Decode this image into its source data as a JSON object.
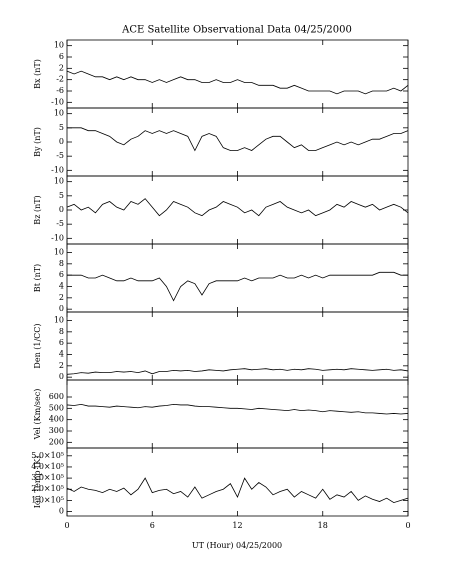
{
  "title": "ACE Satellite Observational Data   04/25/2000",
  "x_label": "UT (Hour)  04/25/2000",
  "chart_data": [
    {
      "type": "line",
      "y_label": "Bx (nT)",
      "ylim": [
        -12,
        12
      ],
      "yticks": [
        -10,
        -6,
        -2,
        2,
        6,
        10
      ],
      "color": "#000000",
      "x": [
        0,
        0.5,
        1,
        1.5,
        2,
        2.5,
        3,
        3.5,
        4,
        4.5,
        5,
        5.5,
        6,
        6.5,
        7,
        7.5,
        8,
        8.5,
        9,
        9.5,
        10,
        10.5,
        11,
        11.5,
        12,
        12.5,
        13,
        13.5,
        14,
        14.5,
        15,
        15.5,
        16,
        16.5,
        17,
        17.5,
        18,
        18.5,
        19,
        19.5,
        20,
        20.5,
        21,
        21.5,
        22,
        22.5,
        23,
        23.5,
        24
      ],
      "values": [
        1,
        0,
        1,
        0,
        -1,
        -1,
        -2,
        -1,
        -2,
        -1,
        -2,
        -2,
        -3,
        -2,
        -3,
        -2,
        -1,
        -2,
        -2,
        -3,
        -3,
        -2,
        -3,
        -3,
        -2,
        -3,
        -3,
        -4,
        -4,
        -4,
        -5,
        -5,
        -4,
        -5,
        -6,
        -6,
        -6,
        -6,
        -7,
        -6,
        -6,
        -6,
        -7,
        -6,
        -6,
        -6,
        -5,
        -6,
        -4
      ]
    },
    {
      "type": "line",
      "y_label": "By (nT)",
      "ylim": [
        -12,
        12
      ],
      "yticks": [
        -10,
        -5,
        0,
        5,
        10
      ],
      "color": "#000000",
      "x": [
        0,
        0.5,
        1,
        1.5,
        2,
        2.5,
        3,
        3.5,
        4,
        4.5,
        5,
        5.5,
        6,
        6.5,
        7,
        7.5,
        8,
        8.5,
        9,
        9.5,
        10,
        10.5,
        11,
        11.5,
        12,
        12.5,
        13,
        13.5,
        14,
        14.5,
        15,
        15.5,
        16,
        16.5,
        17,
        17.5,
        18,
        18.5,
        19,
        19.5,
        20,
        20.5,
        21,
        21.5,
        22,
        22.5,
        23,
        23.5,
        24
      ],
      "values": [
        5,
        5,
        5,
        4,
        4,
        3,
        2,
        0,
        -1,
        1,
        2,
        4,
        3,
        4,
        3,
        4,
        3,
        2,
        -3,
        2,
        3,
        2,
        -2,
        -3,
        -3,
        -2,
        -3,
        -1,
        1,
        2,
        2,
        0,
        -2,
        -1,
        -3,
        -3,
        -2,
        -1,
        0,
        -1,
        0,
        -1,
        0,
        1,
        1,
        2,
        3,
        3,
        4
      ]
    },
    {
      "type": "line",
      "y_label": "Bz (nT)",
      "ylim": [
        -12,
        12
      ],
      "yticks": [
        -10,
        -5,
        0,
        5,
        10
      ],
      "color": "#000000",
      "x": [
        0,
        0.5,
        1,
        1.5,
        2,
        2.5,
        3,
        3.5,
        4,
        4.5,
        5,
        5.5,
        6,
        6.5,
        7,
        7.5,
        8,
        8.5,
        9,
        9.5,
        10,
        10.5,
        11,
        11.5,
        12,
        12.5,
        13,
        13.5,
        14,
        14.5,
        15,
        15.5,
        16,
        16.5,
        17,
        17.5,
        18,
        18.5,
        19,
        19.5,
        20,
        20.5,
        21,
        21.5,
        22,
        22.5,
        23,
        23.5,
        24
      ],
      "values": [
        1,
        2,
        0,
        1,
        -1,
        2,
        3,
        1,
        0,
        3,
        2,
        4,
        1,
        -2,
        0,
        3,
        2,
        1,
        -1,
        -2,
        0,
        1,
        3,
        2,
        1,
        -1,
        0,
        -2,
        1,
        2,
        3,
        1,
        0,
        -1,
        0,
        -2,
        -1,
        0,
        2,
        1,
        3,
        2,
        1,
        2,
        0,
        1,
        2,
        1,
        -1
      ]
    },
    {
      "type": "line",
      "y_label": "Bt (nT)",
      "ylim": [
        -0.5,
        11.5
      ],
      "yticks": [
        0,
        2,
        4,
        6,
        8,
        10
      ],
      "color": "#000000",
      "x": [
        0,
        0.5,
        1,
        1.5,
        2,
        2.5,
        3,
        3.5,
        4,
        4.5,
        5,
        5.5,
        6,
        6.5,
        7,
        7.5,
        8,
        8.5,
        9,
        9.5,
        10,
        10.5,
        11,
        11.5,
        12,
        12.5,
        13,
        13.5,
        14,
        14.5,
        15,
        15.5,
        16,
        16.5,
        17,
        17.5,
        18,
        18.5,
        19,
        19.5,
        20,
        20.5,
        21,
        21.5,
        22,
        22.5,
        23,
        23.5,
        24
      ],
      "values": [
        6,
        6,
        6,
        5.5,
        5.5,
        6,
        5.5,
        5,
        5,
        5.5,
        5,
        5,
        5,
        5.5,
        4,
        1.5,
        4,
        5,
        4.5,
        2.5,
        4.5,
        5,
        5,
        5,
        5,
        5.5,
        5,
        5.5,
        5.5,
        5.5,
        6,
        5.5,
        5.5,
        6,
        5.5,
        6,
        5.5,
        6,
        6,
        6,
        6,
        6,
        6,
        6,
        6.5,
        6.5,
        6.5,
        6,
        6
      ]
    },
    {
      "type": "line",
      "y_label": "Den (1/CC)",
      "ylim": [
        -0.5,
        11.5
      ],
      "yticks": [
        0,
        2,
        4,
        6,
        8,
        10
      ],
      "color": "#000000",
      "x": [
        0,
        0.5,
        1,
        1.5,
        2,
        2.5,
        3,
        3.5,
        4,
        4.5,
        5,
        5.5,
        6,
        6.5,
        7,
        7.5,
        8,
        8.5,
        9,
        9.5,
        10,
        10.5,
        11,
        11.5,
        12,
        12.5,
        13,
        13.5,
        14,
        14.5,
        15,
        15.5,
        16,
        16.5,
        17,
        17.5,
        18,
        18.5,
        19,
        19.5,
        20,
        20.5,
        21,
        21.5,
        22,
        22.5,
        23,
        23.5,
        24
      ],
      "values": [
        0.5,
        0.6,
        0.8,
        0.7,
        0.9,
        0.8,
        0.8,
        1,
        0.9,
        1,
        0.8,
        1.1,
        0.6,
        1,
        1,
        1.2,
        1.1,
        1.2,
        1,
        1.1,
        1.3,
        1.2,
        1.1,
        1.3,
        1.4,
        1.5,
        1.3,
        1.4,
        1.5,
        1.3,
        1.4,
        1.2,
        1.4,
        1.3,
        1.5,
        1.4,
        1.2,
        1.3,
        1.4,
        1.3,
        1.5,
        1.4,
        1.3,
        1.2,
        1.3,
        1.4,
        1.2,
        1.3,
        1.1
      ]
    },
    {
      "type": "line",
      "y_label": "Vel (Km/sec)",
      "ylim": [
        150,
        750
      ],
      "yticks": [
        200,
        300,
        400,
        500,
        600
      ],
      "color": "#000000",
      "x": [
        0,
        0.5,
        1,
        1.5,
        2,
        2.5,
        3,
        3.5,
        4,
        4.5,
        5,
        5.5,
        6,
        6.5,
        7,
        7.5,
        8,
        8.5,
        9,
        9.5,
        10,
        10.5,
        11,
        11.5,
        12,
        12.5,
        13,
        13.5,
        14,
        14.5,
        15,
        15.5,
        16,
        16.5,
        17,
        17.5,
        18,
        18.5,
        19,
        19.5,
        20,
        20.5,
        21,
        21.5,
        22,
        22.5,
        23,
        23.5,
        24
      ],
      "values": [
        530,
        525,
        535,
        520,
        520,
        515,
        510,
        520,
        515,
        510,
        505,
        515,
        510,
        520,
        525,
        535,
        530,
        530,
        520,
        515,
        515,
        510,
        505,
        500,
        500,
        495,
        490,
        500,
        495,
        490,
        485,
        480,
        490,
        480,
        485,
        480,
        470,
        480,
        475,
        470,
        465,
        470,
        460,
        460,
        455,
        450,
        455,
        450,
        455
      ]
    },
    {
      "type": "line",
      "y_label": "Ion Temp (K)",
      "ylim": [
        -40000,
        570000
      ],
      "yticks": [
        0,
        {
          "value": 100000,
          "label": "1.0×10⁵"
        },
        {
          "value": 200000,
          "label": "2.0×10⁵"
        },
        {
          "value": 300000,
          "label": "3.0×10⁵"
        },
        {
          "value": 400000,
          "label": "4.0×10⁵"
        },
        {
          "value": 500000,
          "label": "5.0×10⁵"
        }
      ],
      "xlim": [
        0,
        24
      ],
      "xticks": [
        0,
        6,
        12,
        18,
        {
          "value": 24,
          "label": "0"
        }
      ],
      "color": "#000000",
      "x": [
        0,
        0.5,
        1,
        1.5,
        2,
        2.5,
        3,
        3.5,
        4,
        4.5,
        5,
        5.5,
        6,
        6.5,
        7,
        7.5,
        8,
        8.5,
        9,
        9.5,
        10,
        10.5,
        11,
        11.5,
        12,
        12.5,
        13,
        13.5,
        14,
        14.5,
        15,
        15.5,
        16,
        16.5,
        17,
        17.5,
        18,
        18.5,
        19,
        19.5,
        20,
        20.5,
        21,
        21.5,
        22,
        22.5,
        23,
        23.5,
        24
      ],
      "values": [
        210000,
        180000,
        220000,
        200000,
        190000,
        170000,
        200000,
        180000,
        210000,
        150000,
        200000,
        300000,
        170000,
        190000,
        200000,
        160000,
        180000,
        130000,
        220000,
        120000,
        150000,
        180000,
        200000,
        250000,
        130000,
        300000,
        200000,
        260000,
        220000,
        150000,
        180000,
        200000,
        130000,
        180000,
        150000,
        120000,
        200000,
        110000,
        150000,
        130000,
        180000,
        100000,
        140000,
        110000,
        90000,
        120000,
        80000,
        100000,
        120000
      ]
    }
  ]
}
